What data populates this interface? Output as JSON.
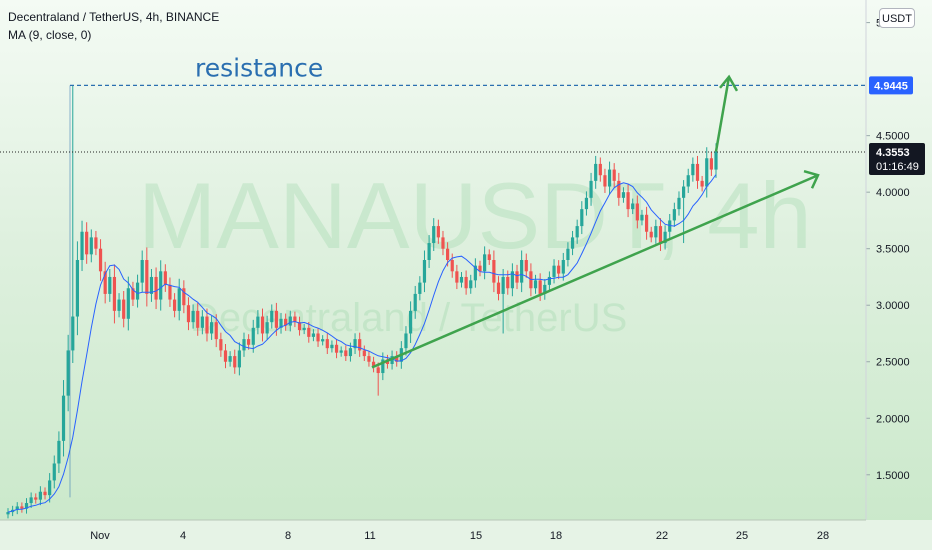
{
  "header": {
    "symbol_line": "Decentraland / TetherUS, 4h, BINANCE",
    "indicator_line": "MA (9, close, 0)"
  },
  "watermark": {
    "ticker": "MANAUSDT, 4h",
    "name": "Decentraland / TetherUS"
  },
  "currency_button": "USDT",
  "annotation": {
    "resistance_label": "resistance"
  },
  "price_labels": {
    "resistance_price": "4.9445",
    "last_price": "4.3553",
    "countdown": "01:16:49"
  },
  "colors": {
    "up": "#26a69a",
    "down": "#ef5350",
    "ma": "#2962ff",
    "trendline": "#3fa34d",
    "resistance": "#2a6fb0"
  },
  "chart_data": {
    "type": "candlestick",
    "title": "Decentraland / TetherUS, 4h, BINANCE",
    "indicator": "MA (9, close, 0)",
    "y_ticks": [
      "5.5000",
      "4.5000",
      "4.0000",
      "3.5000",
      "3.0000",
      "2.5000",
      "2.0000",
      "1.5000"
    ],
    "x_ticks": [
      "Nov",
      "4",
      "8",
      "11",
      "15",
      "18",
      "22",
      "25",
      "28"
    ],
    "ylim": [
      1.1,
      5.7
    ],
    "resistance_level": 4.9445,
    "last_price": 4.3553,
    "series_closes": [
      1.17,
      1.19,
      1.22,
      1.2,
      1.25,
      1.3,
      1.28,
      1.35,
      1.32,
      1.45,
      1.6,
      1.8,
      2.2,
      2.6,
      2.9,
      3.4,
      3.65,
      3.45,
      3.6,
      3.5,
      3.3,
      3.1,
      3.25,
      2.95,
      3.05,
      2.88,
      3.15,
      3.05,
      3.2,
      3.4,
      3.1,
      3.25,
      3.05,
      3.3,
      3.18,
      3.05,
      2.95,
      3.15,
      3.0,
      2.85,
      2.95,
      2.8,
      2.9,
      2.75,
      2.85,
      2.7,
      2.6,
      2.5,
      2.55,
      2.45,
      2.6,
      2.7,
      2.65,
      2.8,
      2.9,
      2.75,
      2.85,
      2.95,
      2.8,
      2.88,
      2.82,
      2.9,
      2.85,
      2.78,
      2.8,
      2.72,
      2.75,
      2.68,
      2.7,
      2.62,
      2.65,
      2.58,
      2.6,
      2.55,
      2.62,
      2.7,
      2.6,
      2.55,
      2.5,
      2.45,
      2.4,
      2.52,
      2.48,
      2.55,
      2.5,
      2.62,
      2.75,
      2.95,
      3.1,
      3.2,
      3.4,
      3.55,
      3.7,
      3.6,
      3.5,
      3.4,
      3.3,
      3.2,
      3.25,
      3.15,
      3.22,
      3.35,
      3.3,
      3.45,
      3.4,
      3.2,
      3.1,
      3.25,
      3.15,
      3.3,
      3.2,
      3.4,
      3.3,
      3.15,
      3.22,
      3.1,
      3.18,
      3.25,
      3.35,
      3.28,
      3.4,
      3.5,
      3.6,
      3.7,
      3.85,
      3.95,
      4.1,
      4.25,
      4.15,
      4.05,
      4.2,
      4.1,
      3.95,
      4.0,
      3.85,
      3.9,
      3.75,
      3.8,
      3.65,
      3.6,
      3.7,
      3.55,
      3.65,
      3.75,
      3.85,
      3.95,
      4.05,
      4.15,
      4.25,
      4.1,
      4.05,
      4.3,
      4.2,
      4.36
    ]
  }
}
